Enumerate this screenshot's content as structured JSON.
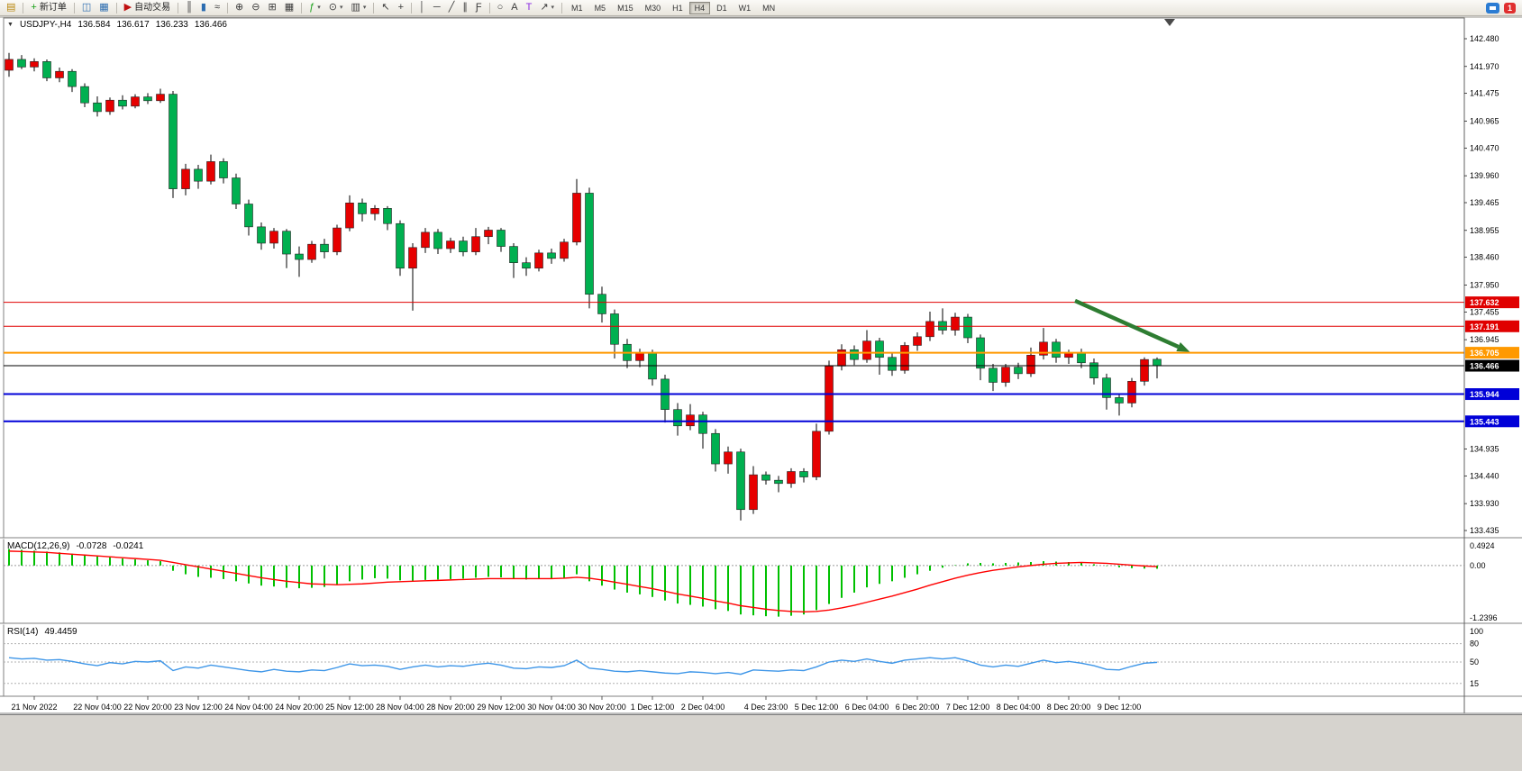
{
  "colors": {
    "up": "#e60000",
    "down": "#00b050",
    "wick": "#000000",
    "macd_hist": "#00c000",
    "macd_signal": "#ff0000",
    "rsi_line": "#3e96e8",
    "arrow": "#2e7d32"
  },
  "toolbar": {
    "new_order_label": "新订单",
    "autotrading_label": "自动交易",
    "notification_count": "1",
    "active_timeframe": "H4",
    "timeframes": [
      "M1",
      "M5",
      "M15",
      "M30",
      "H1",
      "H4",
      "D1",
      "W1",
      "MN"
    ],
    "groups": [
      [
        {
          "name": "new-chart-button",
          "glyph": "▤",
          "color": "#b8860b"
        }
      ],
      [
        {
          "name": "new-order-button",
          "glyph": "+",
          "color": "#18a018",
          "label": "新订单"
        }
      ],
      [
        {
          "name": "market-watch-button",
          "glyph": "◫",
          "color": "#2b6cb0"
        },
        {
          "name": "data-window-button",
          "glyph": "▦",
          "color": "#2b6cb0"
        }
      ],
      [
        {
          "name": "autotrading-button",
          "glyph": "▶",
          "color": "#c01010",
          "label": "自动交易"
        }
      ],
      [
        {
          "name": "bar-chart-button",
          "glyph": "║"
        },
        {
          "name": "candlestick-button",
          "glyph": "▮",
          "color": "#2b6cb0"
        },
        {
          "name": "line-chart-button",
          "glyph": "≈"
        }
      ],
      [
        {
          "name": "zoom-in-button",
          "glyph": "⊕"
        },
        {
          "name": "zoom-out-button",
          "glyph": "⊖"
        },
        {
          "name": "tile-windows-button",
          "glyph": "⊞"
        },
        {
          "name": "arrange-windows-button",
          "glyph": "▦"
        }
      ],
      [
        {
          "name": "indicators-button",
          "glyph": "ƒ",
          "color": "#18a018",
          "dropdown": true
        },
        {
          "name": "periods-button",
          "glyph": "⊙",
          "dropdown": true
        },
        {
          "name": "templates-button",
          "glyph": "▥",
          "dropdown": true
        }
      ],
      [
        {
          "name": "cursor-button",
          "glyph": "↖"
        },
        {
          "name": "crosshair-button",
          "glyph": "+"
        }
      ],
      [
        {
          "name": "vertical-line-button",
          "glyph": "│"
        },
        {
          "name": "horizontal-line-button",
          "glyph": "─"
        },
        {
          "name": "trendline-button",
          "glyph": "╱"
        },
        {
          "name": "equidistant-channel-button",
          "glyph": "∥"
        },
        {
          "name": "fibonacci-button",
          "glyph": "Ƒ"
        }
      ],
      [
        {
          "name": "shapes-button",
          "glyph": "○"
        },
        {
          "name": "text-button",
          "glyph": "A"
        },
        {
          "name": "text-label-button",
          "glyph": "T",
          "color": "#8a2be2"
        },
        {
          "name": "arrows-button",
          "glyph": "↗",
          "dropdown": true
        }
      ]
    ]
  },
  "chart": {
    "symbol_period": "USDJPY-,H4",
    "ohlc": {
      "open": "136.584",
      "high": "136.617",
      "low": "136.233",
      "close": "136.466"
    },
    "price_axis_labels": [
      "142.480",
      "141.970",
      "141.475",
      "140.965",
      "140.470",
      "139.960",
      "139.465",
      "138.955",
      "138.460",
      "137.950",
      "137.455",
      "136.945",
      "134.935",
      "134.440",
      "133.930",
      "133.435"
    ],
    "lines": [
      {
        "price": 137.632,
        "label": "137.632",
        "color": "#e00000",
        "width": 1
      },
      {
        "price": 137.191,
        "label": "137.191",
        "color": "#e00000",
        "width": 1
      },
      {
        "price": 136.705,
        "label": "136.705",
        "color": "#ff9900",
        "width": 2
      },
      {
        "price": 136.466,
        "label": "136.466",
        "color": "#000000",
        "width": 1
      },
      {
        "price": 135.944,
        "label": "135.944",
        "color": "#0000d8",
        "width": 2
      },
      {
        "price": 135.443,
        "label": "135.443",
        "color": "#0000d8",
        "width": 2
      }
    ],
    "arrow": {
      "from_bar": 84.5,
      "from_price": 137.66,
      "to_bar": 93.6,
      "to_price": 136.72
    },
    "shift_marker_bar": 92,
    "time_labels": [
      {
        "bar": 2,
        "text": "21 Nov 2022"
      },
      {
        "bar": 7,
        "text": "22 Nov 04:00"
      },
      {
        "bar": 11,
        "text": "22 Nov 20:00"
      },
      {
        "bar": 15,
        "text": "23 Nov 12:00"
      },
      {
        "bar": 19,
        "text": "24 Nov 04:00"
      },
      {
        "bar": 23,
        "text": "24 Nov 20:00"
      },
      {
        "bar": 27,
        "text": "25 Nov 12:00"
      },
      {
        "bar": 31,
        "text": "28 Nov 04:00"
      },
      {
        "bar": 35,
        "text": "28 Nov 20:00"
      },
      {
        "bar": 39,
        "text": "29 Nov 12:00"
      },
      {
        "bar": 43,
        "text": "30 Nov 04:00"
      },
      {
        "bar": 47,
        "text": "30 Nov 20:00"
      },
      {
        "bar": 51,
        "text": "1 Dec 12:00"
      },
      {
        "bar": 55,
        "text": "2 Dec 04:00"
      },
      {
        "bar": 60,
        "text": "4 Dec 23:00"
      },
      {
        "bar": 64,
        "text": "5 Dec 12:00"
      },
      {
        "bar": 68,
        "text": "6 Dec 04:00"
      },
      {
        "bar": 72,
        "text": "6 Dec 20:00"
      },
      {
        "bar": 76,
        "text": "7 Dec 12:00"
      },
      {
        "bar": 80,
        "text": "8 Dec 04:00"
      },
      {
        "bar": 84,
        "text": "8 Dec 20:00"
      },
      {
        "bar": 88,
        "text": "9 Dec 12:00"
      }
    ]
  },
  "indicators": {
    "macd": {
      "title": "MACD(12,26,9)",
      "value_main": "-0.0728",
      "value_signal": "-0.0241",
      "scale_max": 0.4924,
      "scale_min": -1.2396,
      "scale_labels": [
        "0.4924",
        "0.00",
        "-1.2396"
      ]
    },
    "rsi": {
      "title": "RSI(14)",
      "value": "49.4459",
      "levels": [
        80,
        50,
        15
      ],
      "scale_labels": [
        "100",
        "80",
        "50",
        "15"
      ]
    }
  },
  "chart_data": {
    "type": "candlestick",
    "symbol": "USDJPY-",
    "timeframe": "H4",
    "price_range": [
      133.435,
      142.48
    ],
    "candles": [
      [
        141.9,
        142.22,
        141.78,
        142.1
      ],
      [
        142.1,
        142.18,
        141.92,
        141.96
      ],
      [
        141.96,
        142.12,
        141.88,
        142.06
      ],
      [
        142.06,
        142.1,
        141.7,
        141.76
      ],
      [
        141.76,
        141.95,
        141.68,
        141.88
      ],
      [
        141.88,
        141.92,
        141.5,
        141.6
      ],
      [
        141.6,
        141.66,
        141.22,
        141.3
      ],
      [
        141.3,
        141.42,
        141.05,
        141.14
      ],
      [
        141.14,
        141.4,
        141.08,
        141.35
      ],
      [
        141.35,
        141.44,
        141.18,
        141.24
      ],
      [
        141.24,
        141.46,
        141.2,
        141.41
      ],
      [
        141.41,
        141.48,
        141.28,
        141.34
      ],
      [
        141.34,
        141.56,
        141.3,
        141.46
      ],
      [
        141.46,
        141.52,
        139.55,
        139.72
      ],
      [
        139.72,
        140.18,
        139.6,
        140.08
      ],
      [
        140.08,
        140.16,
        139.72,
        139.86
      ],
      [
        139.86,
        140.35,
        139.8,
        140.22
      ],
      [
        140.22,
        140.28,
        139.82,
        139.92
      ],
      [
        139.92,
        140.0,
        139.35,
        139.44
      ],
      [
        139.44,
        139.52,
        138.86,
        139.02
      ],
      [
        139.02,
        139.1,
        138.6,
        138.72
      ],
      [
        138.72,
        139.0,
        138.62,
        138.94
      ],
      [
        138.94,
        138.98,
        138.26,
        138.52
      ],
      [
        138.52,
        138.66,
        138.1,
        138.42
      ],
      [
        138.42,
        138.76,
        138.36,
        138.7
      ],
      [
        138.7,
        138.8,
        138.44,
        138.56
      ],
      [
        138.56,
        139.06,
        138.5,
        139.0
      ],
      [
        139.0,
        139.6,
        138.94,
        139.46
      ],
      [
        139.46,
        139.54,
        139.12,
        139.26
      ],
      [
        139.26,
        139.42,
        139.14,
        139.36
      ],
      [
        139.36,
        139.4,
        138.96,
        139.08
      ],
      [
        139.08,
        139.14,
        138.12,
        138.26
      ],
      [
        138.26,
        138.72,
        137.48,
        138.64
      ],
      [
        138.64,
        139.0,
        138.54,
        138.92
      ],
      [
        138.92,
        138.98,
        138.52,
        138.62
      ],
      [
        138.62,
        138.82,
        138.54,
        138.76
      ],
      [
        138.76,
        138.84,
        138.48,
        138.56
      ],
      [
        138.56,
        139.0,
        138.5,
        138.84
      ],
      [
        138.84,
        139.02,
        138.7,
        138.96
      ],
      [
        138.96,
        139.0,
        138.56,
        138.66
      ],
      [
        138.66,
        138.72,
        138.08,
        138.36
      ],
      [
        138.36,
        138.46,
        138.12,
        138.26
      ],
      [
        138.26,
        138.6,
        138.2,
        138.54
      ],
      [
        138.54,
        138.62,
        138.34,
        138.44
      ],
      [
        138.44,
        138.8,
        138.38,
        138.74
      ],
      [
        138.74,
        139.9,
        138.68,
        139.64
      ],
      [
        139.64,
        139.74,
        137.52,
        137.78
      ],
      [
        137.78,
        137.92,
        137.26,
        137.42
      ],
      [
        137.42,
        137.5,
        136.6,
        136.86
      ],
      [
        136.86,
        136.96,
        136.42,
        136.56
      ],
      [
        136.56,
        136.78,
        136.44,
        136.7
      ],
      [
        136.7,
        136.76,
        136.1,
        136.22
      ],
      [
        136.22,
        136.3,
        135.42,
        135.66
      ],
      [
        135.66,
        135.78,
        135.18,
        135.36
      ],
      [
        135.36,
        135.76,
        135.28,
        135.56
      ],
      [
        135.56,
        135.62,
        134.94,
        135.22
      ],
      [
        135.22,
        135.3,
        134.52,
        134.66
      ],
      [
        134.66,
        134.98,
        134.48,
        134.88
      ],
      [
        134.88,
        134.94,
        133.62,
        133.82
      ],
      [
        133.82,
        134.62,
        133.74,
        134.46
      ],
      [
        134.46,
        134.52,
        134.28,
        134.36
      ],
      [
        134.36,
        134.44,
        134.14,
        134.3
      ],
      [
        134.3,
        134.58,
        134.22,
        134.52
      ],
      [
        134.52,
        134.58,
        134.32,
        134.42
      ],
      [
        134.42,
        135.4,
        134.36,
        135.26
      ],
      [
        135.26,
        136.56,
        135.2,
        136.46
      ],
      [
        136.46,
        136.86,
        136.38,
        136.76
      ],
      [
        136.76,
        136.84,
        136.48,
        136.58
      ],
      [
        136.58,
        137.12,
        136.52,
        136.92
      ],
      [
        136.92,
        136.98,
        136.3,
        136.62
      ],
      [
        136.62,
        136.7,
        136.28,
        136.38
      ],
      [
        136.38,
        136.9,
        136.32,
        136.84
      ],
      [
        136.84,
        137.08,
        136.74,
        137.0
      ],
      [
        137.0,
        137.46,
        136.92,
        137.28
      ],
      [
        137.28,
        137.52,
        137.04,
        137.12
      ],
      [
        137.12,
        137.44,
        137.02,
        137.36
      ],
      [
        137.36,
        137.42,
        136.88,
        136.98
      ],
      [
        136.98,
        137.04,
        136.2,
        136.42
      ],
      [
        136.42,
        136.5,
        136.0,
        136.16
      ],
      [
        136.16,
        136.5,
        136.08,
        136.44
      ],
      [
        136.44,
        136.52,
        136.22,
        136.32
      ],
      [
        136.32,
        136.8,
        136.26,
        136.66
      ],
      [
        136.66,
        137.16,
        136.58,
        136.9
      ],
      [
        136.9,
        136.96,
        136.52,
        136.62
      ],
      [
        136.62,
        136.76,
        136.5,
        136.7
      ],
      [
        136.7,
        136.78,
        136.42,
        136.52
      ],
      [
        136.52,
        136.6,
        136.12,
        136.24
      ],
      [
        136.24,
        136.32,
        135.66,
        135.88
      ],
      [
        135.88,
        135.96,
        135.55,
        135.78
      ],
      [
        135.78,
        136.24,
        135.7,
        136.18
      ],
      [
        136.18,
        136.62,
        136.1,
        136.58
      ],
      [
        136.584,
        136.617,
        136.233,
        136.466
      ]
    ],
    "macd_histogram": [
      0.38,
      0.36,
      0.34,
      0.32,
      0.3,
      0.27,
      0.24,
      0.21,
      0.19,
      0.16,
      0.14,
      0.12,
      0.1,
      -0.12,
      -0.2,
      -0.26,
      -0.28,
      -0.31,
      -0.36,
      -0.41,
      -0.46,
      -0.48,
      -0.51,
      -0.52,
      -0.51,
      -0.49,
      -0.44,
      -0.36,
      -0.32,
      -0.29,
      -0.3,
      -0.34,
      -0.35,
      -0.33,
      -0.32,
      -0.31,
      -0.3,
      -0.28,
      -0.26,
      -0.27,
      -0.3,
      -0.32,
      -0.31,
      -0.3,
      -0.28,
      -0.2,
      -0.36,
      -0.46,
      -0.55,
      -0.62,
      -0.66,
      -0.72,
      -0.8,
      -0.87,
      -0.9,
      -0.94,
      -1.0,
      -1.04,
      -1.12,
      -1.14,
      -1.16,
      -1.17,
      -1.15,
      -1.12,
      -1.02,
      -0.88,
      -0.74,
      -0.62,
      -0.5,
      -0.42,
      -0.36,
      -0.28,
      -0.2,
      -0.12,
      -0.05,
      0.01,
      0.05,
      0.06,
      0.05,
      0.06,
      0.07,
      0.08,
      0.1,
      0.09,
      0.08,
      0.06,
      0.03,
      -0.01,
      -0.04,
      -0.06,
      -0.07,
      -0.0728
    ],
    "macd_signal": [
      0.33,
      0.32,
      0.31,
      0.3,
      0.28,
      0.26,
      0.24,
      0.22,
      0.2,
      0.18,
      0.16,
      0.14,
      0.12,
      0.07,
      0.02,
      -0.03,
      -0.08,
      -0.13,
      -0.18,
      -0.23,
      -0.28,
      -0.32,
      -0.36,
      -0.39,
      -0.42,
      -0.43,
      -0.44,
      -0.43,
      -0.42,
      -0.4,
      -0.38,
      -0.37,
      -0.36,
      -0.35,
      -0.34,
      -0.33,
      -0.32,
      -0.31,
      -0.3,
      -0.3,
      -0.3,
      -0.3,
      -0.3,
      -0.3,
      -0.29,
      -0.27,
      -0.29,
      -0.33,
      -0.38,
      -0.43,
      -0.48,
      -0.53,
      -0.59,
      -0.65,
      -0.7,
      -0.75,
      -0.81,
      -0.86,
      -0.92,
      -0.96,
      -1.0,
      -1.03,
      -1.05,
      -1.06,
      -1.05,
      -1.02,
      -0.97,
      -0.91,
      -0.84,
      -0.77,
      -0.7,
      -0.62,
      -0.54,
      -0.45,
      -0.37,
      -0.29,
      -0.22,
      -0.16,
      -0.11,
      -0.07,
      -0.03,
      0.0,
      0.03,
      0.05,
      0.06,
      0.07,
      0.06,
      0.05,
      0.03,
      0.01,
      -0.01,
      -0.0241
    ],
    "rsi": [
      57,
      55,
      56,
      53,
      54,
      51,
      47,
      44,
      49,
      47,
      51,
      50,
      52,
      36,
      42,
      40,
      45,
      42,
      39,
      36,
      34,
      38,
      35,
      34,
      37,
      36,
      41,
      47,
      44,
      45,
      43,
      38,
      42,
      45,
      42,
      44,
      43,
      46,
      48,
      45,
      40,
      39,
      42,
      41,
      44,
      53,
      40,
      38,
      35,
      34,
      36,
      34,
      32,
      31,
      34,
      33,
      31,
      33,
      30,
      37,
      36,
      35,
      37,
      36,
      42,
      50,
      53,
      51,
      55,
      51,
      48,
      53,
      55,
      57,
      55,
      57,
      52,
      45,
      42,
      45,
      43,
      48,
      53,
      49,
      51,
      48,
      44,
      38,
      37,
      43,
      48,
      49.4459
    ]
  }
}
